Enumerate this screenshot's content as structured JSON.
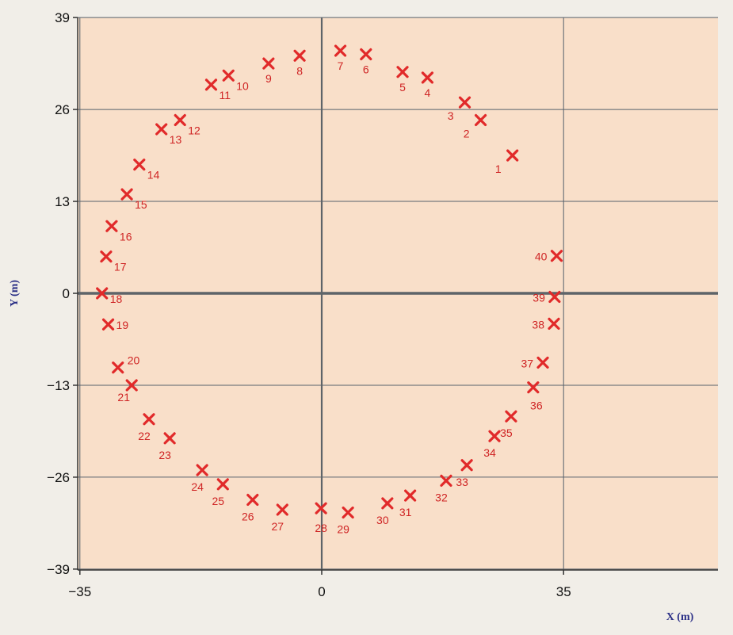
{
  "chart_data": {
    "type": "scatter",
    "xlabel": "X (m)",
    "ylabel": "Y (m)",
    "xlim": [
      -35,
      56
    ],
    "ylim": [
      -39,
      39
    ],
    "xticks": [
      -35,
      0,
      35
    ],
    "yticks": [
      39,
      26,
      13,
      0,
      -13,
      -26,
      -39
    ],
    "grid": true,
    "marker": "x",
    "colors": {
      "plot_background": "#f9dfc9",
      "marker": "#e12a2a",
      "label": "#cf2424",
      "grid": "#56606b",
      "main_axes": "#5e6469"
    },
    "points": [
      {
        "label": "1",
        "x": 27.6,
        "y": 19.5
      },
      {
        "label": "2",
        "x": 23.0,
        "y": 24.5
      },
      {
        "label": "3",
        "x": 20.7,
        "y": 27.0
      },
      {
        "label": "4",
        "x": 15.3,
        "y": 30.5
      },
      {
        "label": "5",
        "x": 11.7,
        "y": 31.3
      },
      {
        "label": "6",
        "x": 6.4,
        "y": 33.8
      },
      {
        "label": "7",
        "x": 2.7,
        "y": 34.3
      },
      {
        "label": "8",
        "x": -3.2,
        "y": 33.6
      },
      {
        "label": "9",
        "x": -7.7,
        "y": 32.5
      },
      {
        "label": "10",
        "x": -13.5,
        "y": 30.8
      },
      {
        "label": "11",
        "x": -16.0,
        "y": 29.5
      },
      {
        "label": "12",
        "x": -20.5,
        "y": 24.5
      },
      {
        "label": "13",
        "x": -23.2,
        "y": 23.2
      },
      {
        "label": "14",
        "x": -26.4,
        "y": 18.2
      },
      {
        "label": "15",
        "x": -28.2,
        "y": 14.0
      },
      {
        "label": "16",
        "x": -30.4,
        "y": 9.5
      },
      {
        "label": "17",
        "x": -31.2,
        "y": 5.2
      },
      {
        "label": "18",
        "x": -31.8,
        "y": 0.0
      },
      {
        "label": "19",
        "x": -30.9,
        "y": -4.4
      },
      {
        "label": "20",
        "x": -29.5,
        "y": -10.5
      },
      {
        "label": "21",
        "x": -27.5,
        "y": -13.0
      },
      {
        "label": "22",
        "x": -25.0,
        "y": -17.8
      },
      {
        "label": "23",
        "x": -22.0,
        "y": -20.5
      },
      {
        "label": "24",
        "x": -17.3,
        "y": -25.0
      },
      {
        "label": "25",
        "x": -14.3,
        "y": -27.0
      },
      {
        "label": "26",
        "x": -10.0,
        "y": -29.2
      },
      {
        "label": "27",
        "x": -5.7,
        "y": -30.6
      },
      {
        "label": "28",
        "x": -0.1,
        "y": -30.4
      },
      {
        "label": "29",
        "x": 3.8,
        "y": -31.0
      },
      {
        "label": "30",
        "x": 9.5,
        "y": -29.7
      },
      {
        "label": "31",
        "x": 12.8,
        "y": -28.6
      },
      {
        "label": "32",
        "x": 18.0,
        "y": -26.5
      },
      {
        "label": "33",
        "x": 21.0,
        "y": -24.3
      },
      {
        "label": "34",
        "x": 25.0,
        "y": -20.2
      },
      {
        "label": "35",
        "x": 27.4,
        "y": -17.4
      },
      {
        "label": "36",
        "x": 30.6,
        "y": -13.3
      },
      {
        "label": "37",
        "x": 32.0,
        "y": -9.8
      },
      {
        "label": "38",
        "x": 33.6,
        "y": -4.3
      },
      {
        "label": "39",
        "x": 33.7,
        "y": -0.5
      },
      {
        "label": "40",
        "x": 34.0,
        "y": 5.3
      }
    ]
  }
}
